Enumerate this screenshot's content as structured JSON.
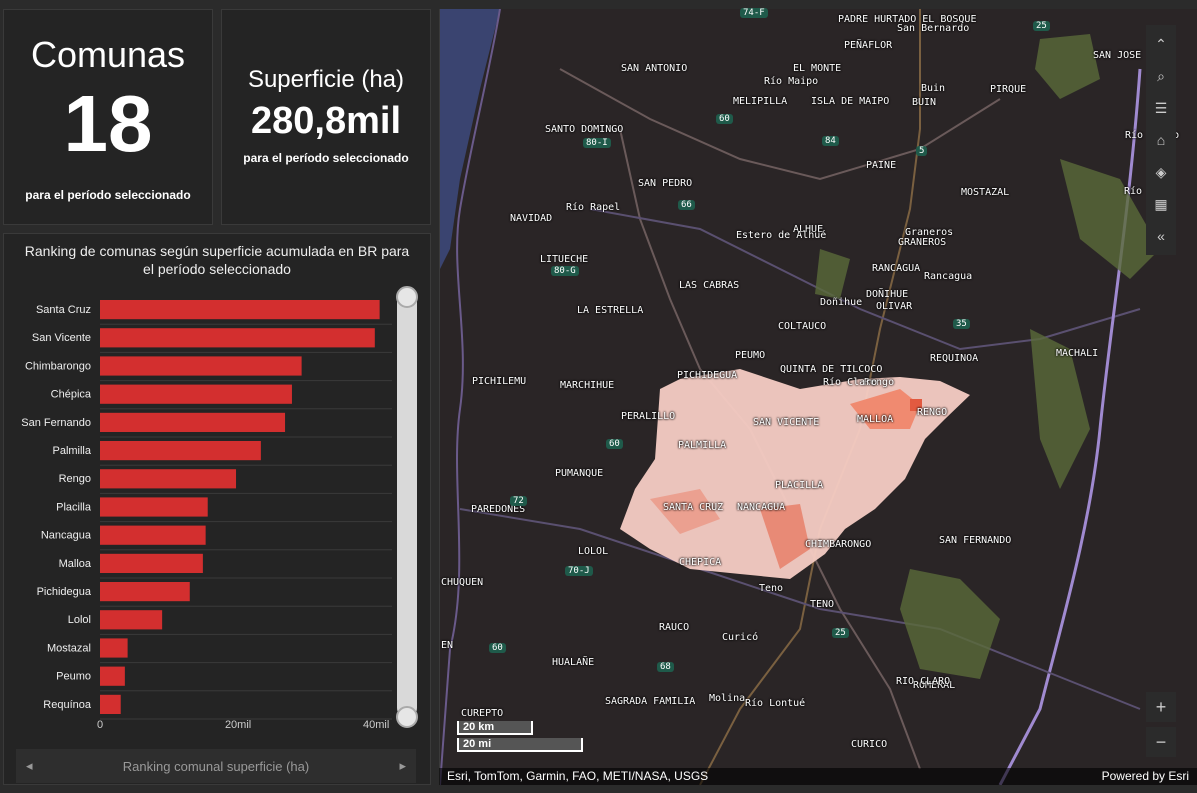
{
  "kpi_comunas": {
    "title": "Comunas",
    "value": "18",
    "subtitle": "para el período seleccionado"
  },
  "kpi_superficie": {
    "title": "Superficie (ha)",
    "value": "280,8mil",
    "subtitle": "para el período seleccionado"
  },
  "ranking": {
    "title": "Ranking de comunas según superficie acumulada en BR para el período seleccionado",
    "pager_label": "Ranking comunal superficie (ha)",
    "pager_prev": "◂",
    "pager_next": "▸"
  },
  "chart_data": {
    "type": "bar",
    "orientation": "horizontal",
    "categories": [
      "Santa Cruz",
      "San Vicente",
      "Chimbarongo",
      "Chépica",
      "San Fernando",
      "Palmilla",
      "Rengo",
      "Placilla",
      "Nancagua",
      "Malloa",
      "Pichidegua",
      "Lolol",
      "Mostazal",
      "Peumo",
      "Requínoa"
    ],
    "values": [
      40500,
      39800,
      29200,
      27800,
      26800,
      23300,
      19700,
      15600,
      15300,
      14900,
      13000,
      9000,
      4000,
      3600,
      3000
    ],
    "xlim": [
      0,
      42000
    ],
    "xticks": [
      {
        "v": 0,
        "label": "0"
      },
      {
        "v": 20000,
        "label": "20mil"
      },
      {
        "v": 40000,
        "label": "40mil"
      }
    ],
    "bar_color": "#d32f2f"
  },
  "map": {
    "labels": [
      {
        "t": "PADRE HURTADO EL BOSQUE"
      },
      {
        "t": "PEÑAFLOR"
      },
      {
        "t": "SAN ANTONIO"
      },
      {
        "t": "EL MONTE"
      },
      {
        "t": "San Bernardo"
      },
      {
        "t": "SAN JOSE"
      },
      {
        "t": "MELIPILLA"
      },
      {
        "t": "ISLA DE MAIPO"
      },
      {
        "t": "Buin"
      },
      {
        "t": "BUIN"
      },
      {
        "t": "PIRQUE"
      },
      {
        "t": "SANTO DOMINGO"
      },
      {
        "t": "PAINE"
      },
      {
        "t": "SAN PEDRO"
      },
      {
        "t": "MOSTAZAL"
      },
      {
        "t": "NAVIDAD"
      },
      {
        "t": "ALHUE"
      },
      {
        "t": "GRANEROS"
      },
      {
        "t": "Graneros"
      },
      {
        "t": "LITUECHE"
      },
      {
        "t": "LAS CABRAS"
      },
      {
        "t": "RANCAGUA"
      },
      {
        "t": "Rancagua"
      },
      {
        "t": "DOÑIHUE"
      },
      {
        "t": "Doñihue"
      },
      {
        "t": "OLIVAR"
      },
      {
        "t": "LA ESTRELLA"
      },
      {
        "t": "COLTAUCO"
      },
      {
        "t": "MACHALI"
      },
      {
        "t": "PEUMO"
      },
      {
        "t": "QUINTA DE TILCOCO"
      },
      {
        "t": "REQUINOA"
      },
      {
        "t": "PICHIDEGUA"
      },
      {
        "t": "Rengo"
      },
      {
        "t": "PICHILEMU"
      },
      {
        "t": "MARCHIHUE"
      },
      {
        "t": "PERALILLO"
      },
      {
        "t": "RENGO"
      },
      {
        "t": "SAN VICENTE"
      },
      {
        "t": "MALLOA"
      },
      {
        "t": "PALMILLA"
      },
      {
        "t": "PUMANQUE"
      },
      {
        "t": "PLACILLA"
      },
      {
        "t": "PAREDONES"
      },
      {
        "t": "SANTA CRUZ"
      },
      {
        "t": "NANCAGUA"
      },
      {
        "t": "SAN FERNANDO"
      },
      {
        "t": "CHIMBARONGO"
      },
      {
        "t": "LOLOL"
      },
      {
        "t": "CHEPICA"
      },
      {
        "t": "CHUQUEN"
      },
      {
        "t": "Teno"
      },
      {
        "t": "TENO"
      },
      {
        "t": "RAUCO"
      },
      {
        "t": "Curicó"
      },
      {
        "t": "EN"
      },
      {
        "t": "HUALAÑE"
      },
      {
        "t": "ROMERAL"
      },
      {
        "t": "CUREPTO"
      },
      {
        "t": "SAGRADA FAMILIA"
      },
      {
        "t": "Molina"
      },
      {
        "t": "CURICO"
      },
      {
        "t": "RIO CLARO"
      },
      {
        "t": "Río Maipo"
      },
      {
        "t": "Estero de Alhué"
      },
      {
        "t": "Río Rapel"
      },
      {
        "t": "Río Claro"
      },
      {
        "t": "Río Lontué"
      },
      {
        "t": "Río Claro"
      },
      {
        "t": "Río"
      }
    ],
    "shields": [
      "74-F",
      "25",
      "60",
      "84",
      "5",
      "80-I",
      "66",
      "80-G",
      "35",
      "60",
      "72",
      "70-J",
      "60",
      "25",
      "68"
    ],
    "scale_km": "20 km",
    "scale_mi": "20 mi",
    "attribution": "Esri, TomTom, Garmin, FAO, METI/NASA, USGS",
    "powered_by": "Powered by Esri",
    "zoom_in": "+",
    "zoom_out": "−"
  }
}
